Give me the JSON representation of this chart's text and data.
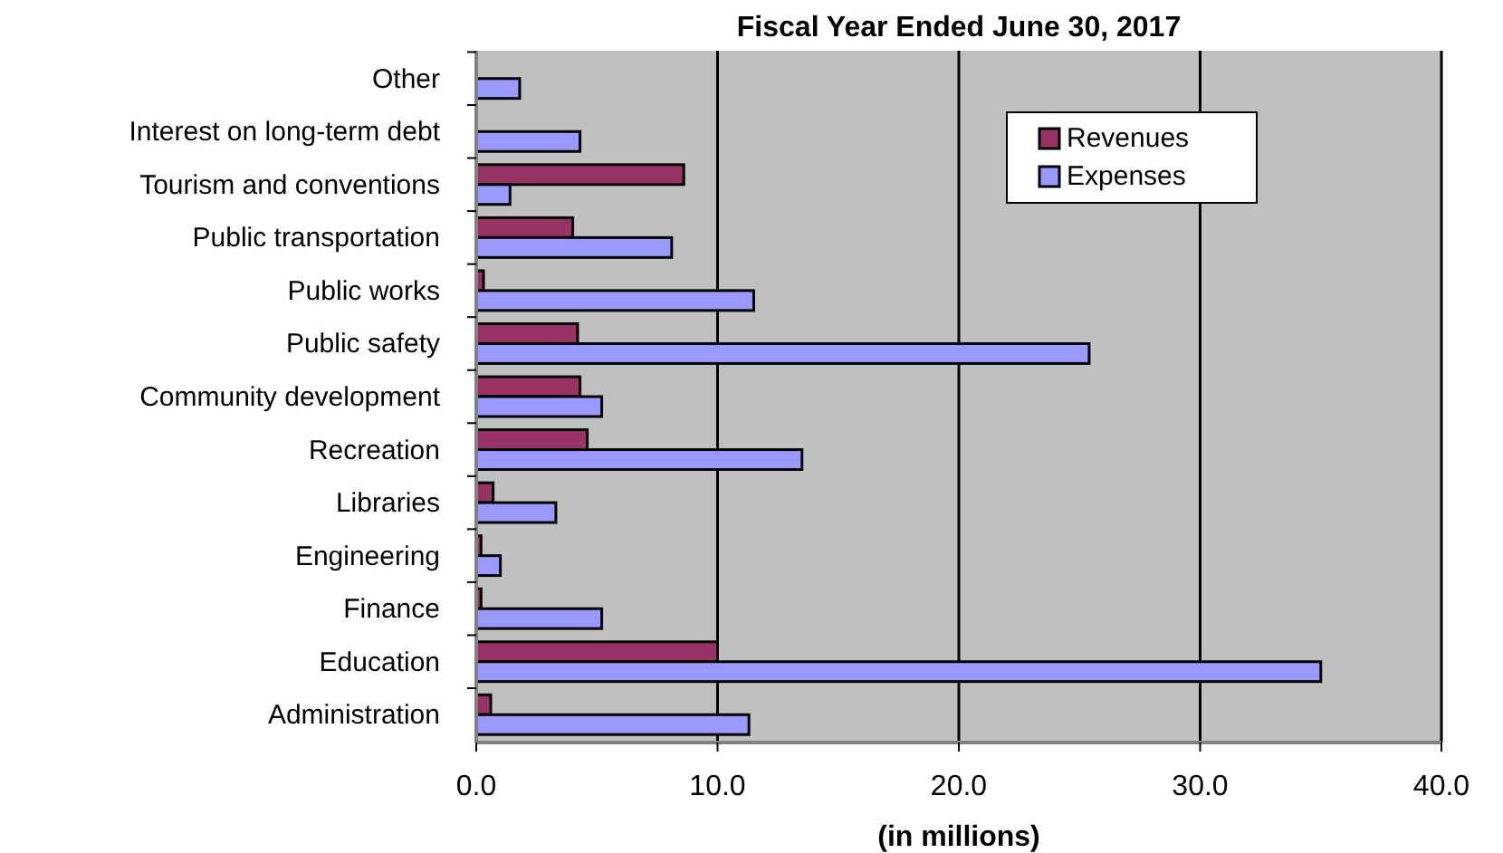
{
  "chart_data": {
    "type": "bar",
    "orientation": "horizontal",
    "title": "Fiscal Year Ended June 30, 2017",
    "xlabel": "(in millions)",
    "categories": [
      "Other",
      "Interest on long-term debt",
      "Tourism and conventions",
      "Public transportation",
      "Public works",
      "Public safety",
      "Community development",
      "Recreation",
      "Libraries",
      "Engineering",
      "Finance",
      "Education",
      "Administration"
    ],
    "series": [
      {
        "name": "Revenues",
        "color": "#993366",
        "values": [
          null,
          null,
          8.6,
          4.0,
          0.3,
          4.2,
          4.3,
          4.6,
          0.7,
          0.2,
          0.2,
          10.0,
          0.6
        ]
      },
      {
        "name": "Expenses",
        "color": "#9999ff",
        "values": [
          1.8,
          4.3,
          1.4,
          8.1,
          11.5,
          25.4,
          5.2,
          13.5,
          3.3,
          1.0,
          5.2,
          35.0,
          11.3
        ]
      }
    ],
    "xlim": [
      0,
      40
    ],
    "xticks": [
      {
        "value": 0,
        "label": "0.0"
      },
      {
        "value": 10,
        "label": "10.0"
      },
      {
        "value": 20,
        "label": "20.0"
      },
      {
        "value": 30,
        "label": "30.0"
      },
      {
        "value": 40,
        "label": "40.0"
      }
    ],
    "grid": "x",
    "legend": "top right"
  }
}
